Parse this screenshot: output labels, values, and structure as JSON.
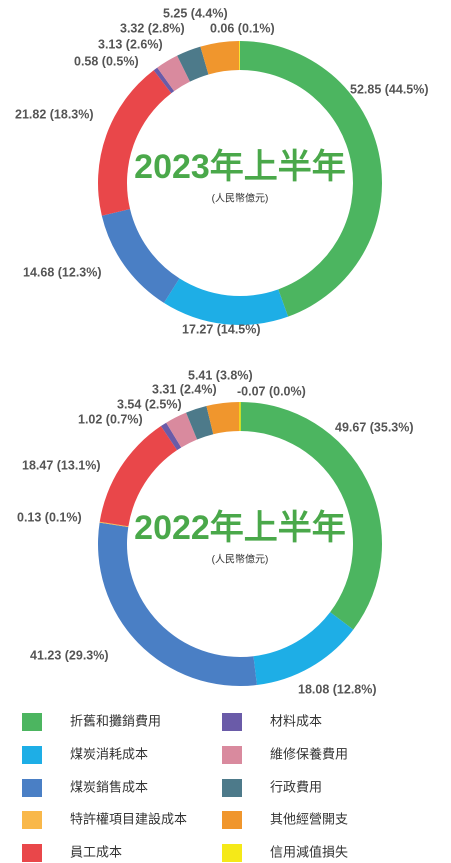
{
  "chart_data": [
    {
      "type": "pie",
      "title": "2023年上半年",
      "subtitle": "(人民幣億元)",
      "values": [
        52.85,
        17.27,
        14.68,
        null,
        21.82,
        0.58,
        3.13,
        3.32,
        5.25,
        0.06
      ],
      "percents": [
        44.5,
        14.5,
        12.3,
        null,
        18.3,
        0.5,
        2.6,
        2.8,
        4.4,
        0.1
      ],
      "value_labels": [
        "52.85 (44.5%)",
        "17.27 (14.5%)",
        "14.68 (12.3%)",
        null,
        "21.82 (18.3%)",
        "0.58 (0.5%)",
        "3.13 (2.6%)",
        "3.32 (2.8%)",
        "5.25 (4.4%)",
        "0.06 (0.1%)"
      ]
    },
    {
      "type": "pie",
      "title": "2022年上半年",
      "subtitle": "(人民幣億元)",
      "values": [
        49.67,
        18.08,
        41.23,
        0.13,
        18.47,
        1.02,
        3.54,
        3.31,
        5.41,
        -0.07
      ],
      "percents": [
        35.3,
        12.8,
        29.3,
        0.1,
        13.1,
        0.7,
        2.5,
        2.4,
        3.8,
        0.0
      ],
      "value_labels": [
        "49.67 (35.3%)",
        "18.08 (12.8%)",
        "41.23 (29.3%)",
        "0.13 (0.1%)",
        "18.47 (13.1%)",
        "1.02 (0.7%)",
        "3.54 (2.5%)",
        "3.31 (2.4%)",
        "5.41 (3.8%)",
        "-0.07 (0.0%)"
      ]
    }
  ],
  "legend": {
    "categories": [
      "折舊和攤銷費用",
      "煤炭消耗成本",
      "煤炭銷售成本",
      "特許權項目建設成本",
      "員工成本",
      "材料成本",
      "維修保養費用",
      "行政費用",
      "其他經營開支",
      "信用減值損失"
    ],
    "colors": [
      "#4cb560",
      "#1eaee6",
      "#4a7fc5",
      "#f9b84a",
      "#e9474a",
      "#6a5ba8",
      "#d98a9e",
      "#4d7a8a",
      "#f0962d",
      "#f5e918"
    ]
  }
}
